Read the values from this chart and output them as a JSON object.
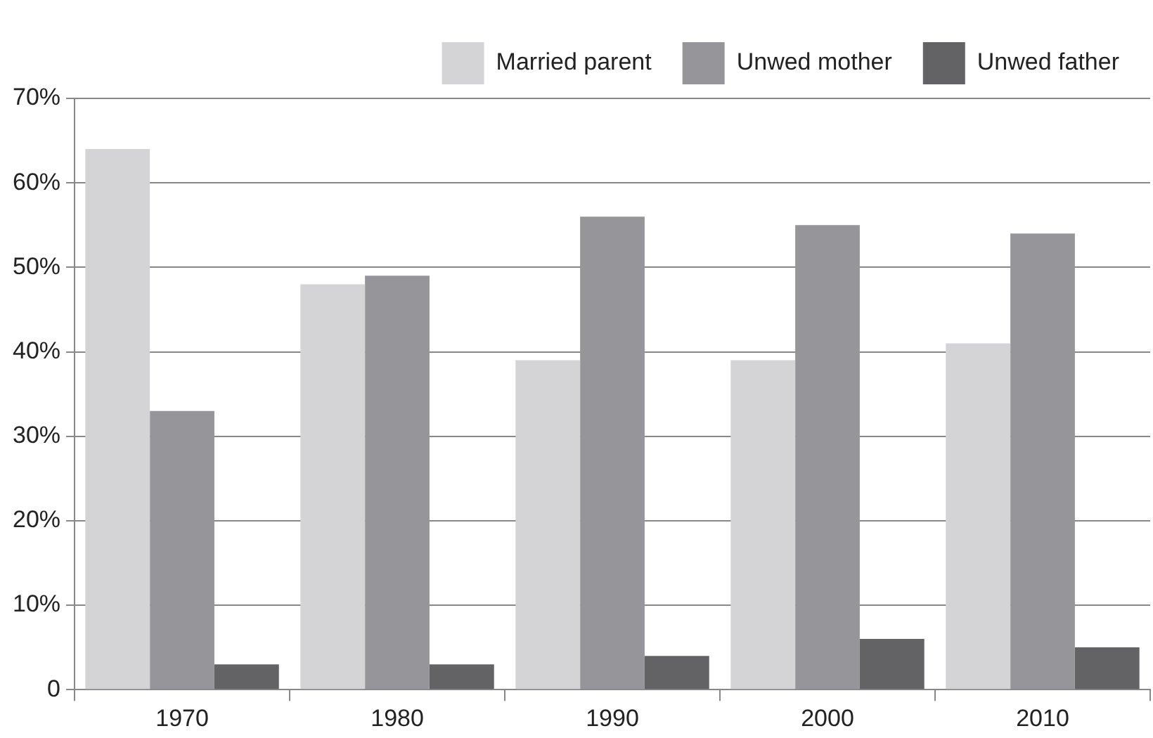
{
  "chart_data": {
    "type": "bar",
    "categories": [
      "1970",
      "1980",
      "1990",
      "2000",
      "2010"
    ],
    "series": [
      {
        "name": "Married parent",
        "color": "#d4d4d6",
        "values": [
          64,
          48,
          39,
          39,
          41
        ]
      },
      {
        "name": "Unwed mother",
        "color": "#96969a",
        "values": [
          33,
          49,
          56,
          55,
          54
        ]
      },
      {
        "name": "Unwed father",
        "color": "#636366",
        "values": [
          3,
          3,
          4,
          6,
          5
        ]
      }
    ],
    "ylim": [
      0,
      70
    ],
    "yticks": [
      {
        "value": 0,
        "label": "0"
      },
      {
        "value": 10,
        "label": "10%"
      },
      {
        "value": 20,
        "label": "20%"
      },
      {
        "value": 30,
        "label": "30%"
      },
      {
        "value": 40,
        "label": "40%"
      },
      {
        "value": 50,
        "label": "50%"
      },
      {
        "value": 60,
        "label": "60%"
      },
      {
        "value": 70,
        "label": "70%"
      }
    ],
    "grid": "y",
    "legend": "top right"
  }
}
